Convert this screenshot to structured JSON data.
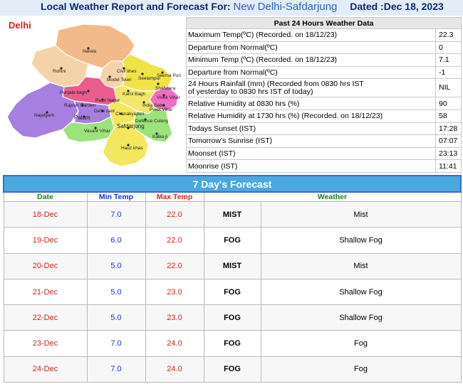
{
  "header": {
    "prefix": "Local Weather Report and Forecast For:",
    "location": "New Delhi-Safdarjung",
    "date": "Dated :Dec 18, 2023"
  },
  "map": {
    "title": "Delhi",
    "districts": [
      "Narela",
      "Rohini",
      "Model Town",
      "Civil lines",
      "Seelampur",
      "Seema Puri",
      "Shahdara",
      "Karol Bagh",
      "Vivek Vihar",
      "Punjabi bagh",
      "Patel Nagar",
      "Rajouri Garden",
      "India Gate",
      "Preet Vihar",
      "Najafgarh",
      "Delhi cant",
      "Palam",
      "Chanakyapuri",
      "Defence Colony",
      "Vasant Vihar",
      "Safdarjung",
      "Kalka ji",
      "Hauz khas"
    ]
  },
  "past24": {
    "title": "Past 24 Hours Weather Data",
    "rows": [
      {
        "label": "Maximum Temp(ºC) (Recorded. on 18/12/23)",
        "value": "22.3"
      },
      {
        "label": "Departure from Normal(ºC)",
        "value": "0"
      },
      {
        "label": "Minimum Temp (ºC) (Recorded. on 18/12/23)",
        "value": "7.1"
      },
      {
        "label": "Departure from Normal(ºC)",
        "value": "-1"
      },
      {
        "label": "24 Hours Rainfall (mm) (Recorded from 0830 hrs IST",
        "label2": "of yesterday to 0830 hrs IST of today)",
        "value": "NIL"
      },
      {
        "label": "Relative Humidity at 0830 hrs (%)",
        "value": "90"
      },
      {
        "label": "Relative Humidity at 1730 hrs (%) (Recorded. on 18/12/23)",
        "value": "58"
      },
      {
        "label": "Todays Sunset (IST)",
        "value": "17:28"
      },
      {
        "label": "Tomorrow's Sunrise (IST)",
        "value": "07:07"
      },
      {
        "label": "Moonset (IST)",
        "value": "23:13"
      },
      {
        "label": "Moonrise (IST)",
        "value": "11:41"
      }
    ]
  },
  "forecast": {
    "title": "7 Day's Forecast",
    "headers": {
      "date": "Date",
      "min": "Min Temp",
      "max": "Max Temp",
      "weather": "Weather"
    },
    "days": [
      {
        "date": "18-Dec",
        "min": "7.0",
        "max": "22.0",
        "code": "MIST",
        "weather": "Mist"
      },
      {
        "date": "19-Dec",
        "min": "6.0",
        "max": "22.0",
        "code": "FOG",
        "weather": "Shallow Fog"
      },
      {
        "date": "20-Dec",
        "min": "5.0",
        "max": "22.0",
        "code": "MIST",
        "weather": "Mist"
      },
      {
        "date": "21-Dec",
        "min": "5.0",
        "max": "23.0",
        "code": "FOG",
        "weather": "Shallow Fog"
      },
      {
        "date": "22-Dec",
        "min": "5.0",
        "max": "23.0",
        "code": "FOG",
        "weather": "Shallow Fog"
      },
      {
        "date": "23-Dec",
        "min": "7.0",
        "max": "24.0",
        "code": "FOG",
        "weather": "Fog"
      },
      {
        "date": "24-Dec",
        "min": "7.0",
        "max": "24.0",
        "code": "FOG",
        "weather": "Fog"
      }
    ]
  }
}
